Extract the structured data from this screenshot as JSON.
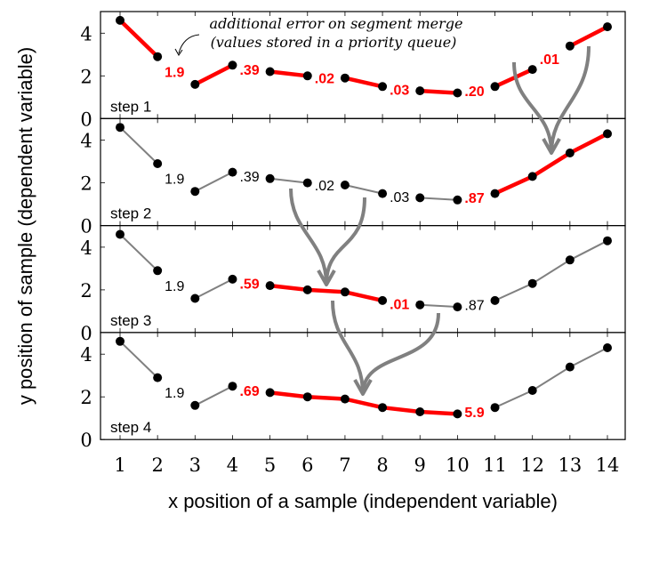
{
  "chart_data": {
    "type": "line",
    "xlabel": "x position of a sample (independent variable)",
    "ylabel": "y position of sample (dependent variable)",
    "x": [
      1,
      2,
      3,
      4,
      5,
      6,
      7,
      8,
      9,
      10,
      11,
      12,
      13,
      14
    ],
    "y": [
      4.6,
      2.9,
      1.6,
      2.5,
      2.2,
      2.0,
      1.9,
      1.5,
      1.3,
      1.2,
      1.5,
      2.3,
      3.4,
      4.3
    ],
    "xlim": [
      0.5,
      14.5
    ],
    "ylim": [
      0,
      5
    ],
    "yticks": [
      0,
      2,
      4
    ],
    "grid": false,
    "annotation": [
      "additional error on segment merge",
      "(values stored in a priority queue)"
    ],
    "colors": {
      "active": "#ff0000",
      "inactive": "#808080",
      "point": "#000000",
      "arrow": "#808080"
    },
    "panels": [
      {
        "label": "step 1",
        "segments": [
          [
            1,
            2,
            "red"
          ],
          [
            3,
            4,
            "red"
          ],
          [
            5,
            6,
            "red"
          ],
          [
            7,
            8,
            "red"
          ],
          [
            9,
            10,
            "red"
          ],
          [
            11,
            12,
            "red"
          ],
          [
            13,
            14,
            "red"
          ]
        ],
        "costs": [
          {
            "after": 2,
            "text": "1.9",
            "red": true
          },
          {
            "after": 4,
            "text": ".39",
            "red": true
          },
          {
            "after": 6,
            "text": ".02",
            "red": true
          },
          {
            "after": 8,
            "text": ".03",
            "red": true
          },
          {
            "after": 10,
            "text": ".20",
            "red": true
          },
          {
            "after": 12,
            "text": ".01",
            "red": true
          }
        ]
      },
      {
        "label": "step 2",
        "segments": [
          [
            1,
            2,
            "gray"
          ],
          [
            3,
            4,
            "gray"
          ],
          [
            5,
            6,
            "gray"
          ],
          [
            7,
            8,
            "gray"
          ],
          [
            9,
            10,
            "gray"
          ],
          [
            11,
            14,
            "red"
          ]
        ],
        "costs": [
          {
            "after": 2,
            "text": "1.9",
            "red": false
          },
          {
            "after": 4,
            "text": ".39",
            "red": false
          },
          {
            "after": 6,
            "text": ".02",
            "red": false
          },
          {
            "after": 8,
            "text": ".03",
            "red": false
          },
          {
            "after": 10,
            "text": ".87",
            "red": true
          }
        ]
      },
      {
        "label": "step 3",
        "segments": [
          [
            1,
            2,
            "gray"
          ],
          [
            3,
            4,
            "gray"
          ],
          [
            5,
            8,
            "red"
          ],
          [
            9,
            10,
            "gray"
          ],
          [
            11,
            14,
            "gray"
          ]
        ],
        "costs": [
          {
            "after": 2,
            "text": "1.9",
            "red": false
          },
          {
            "after": 4,
            "text": ".59",
            "red": true
          },
          {
            "after": 8,
            "text": ".01",
            "red": true
          },
          {
            "after": 10,
            "text": ".87",
            "red": false
          }
        ]
      },
      {
        "label": "step 4",
        "segments": [
          [
            1,
            2,
            "gray"
          ],
          [
            3,
            4,
            "gray"
          ],
          [
            5,
            10,
            "red"
          ],
          [
            11,
            14,
            "gray"
          ]
        ],
        "costs": [
          {
            "after": 2,
            "text": "1.9",
            "red": false
          },
          {
            "after": 4,
            "text": ".69",
            "red": true
          },
          {
            "after": 10,
            "text": "5.9",
            "red": true
          }
        ]
      }
    ]
  }
}
